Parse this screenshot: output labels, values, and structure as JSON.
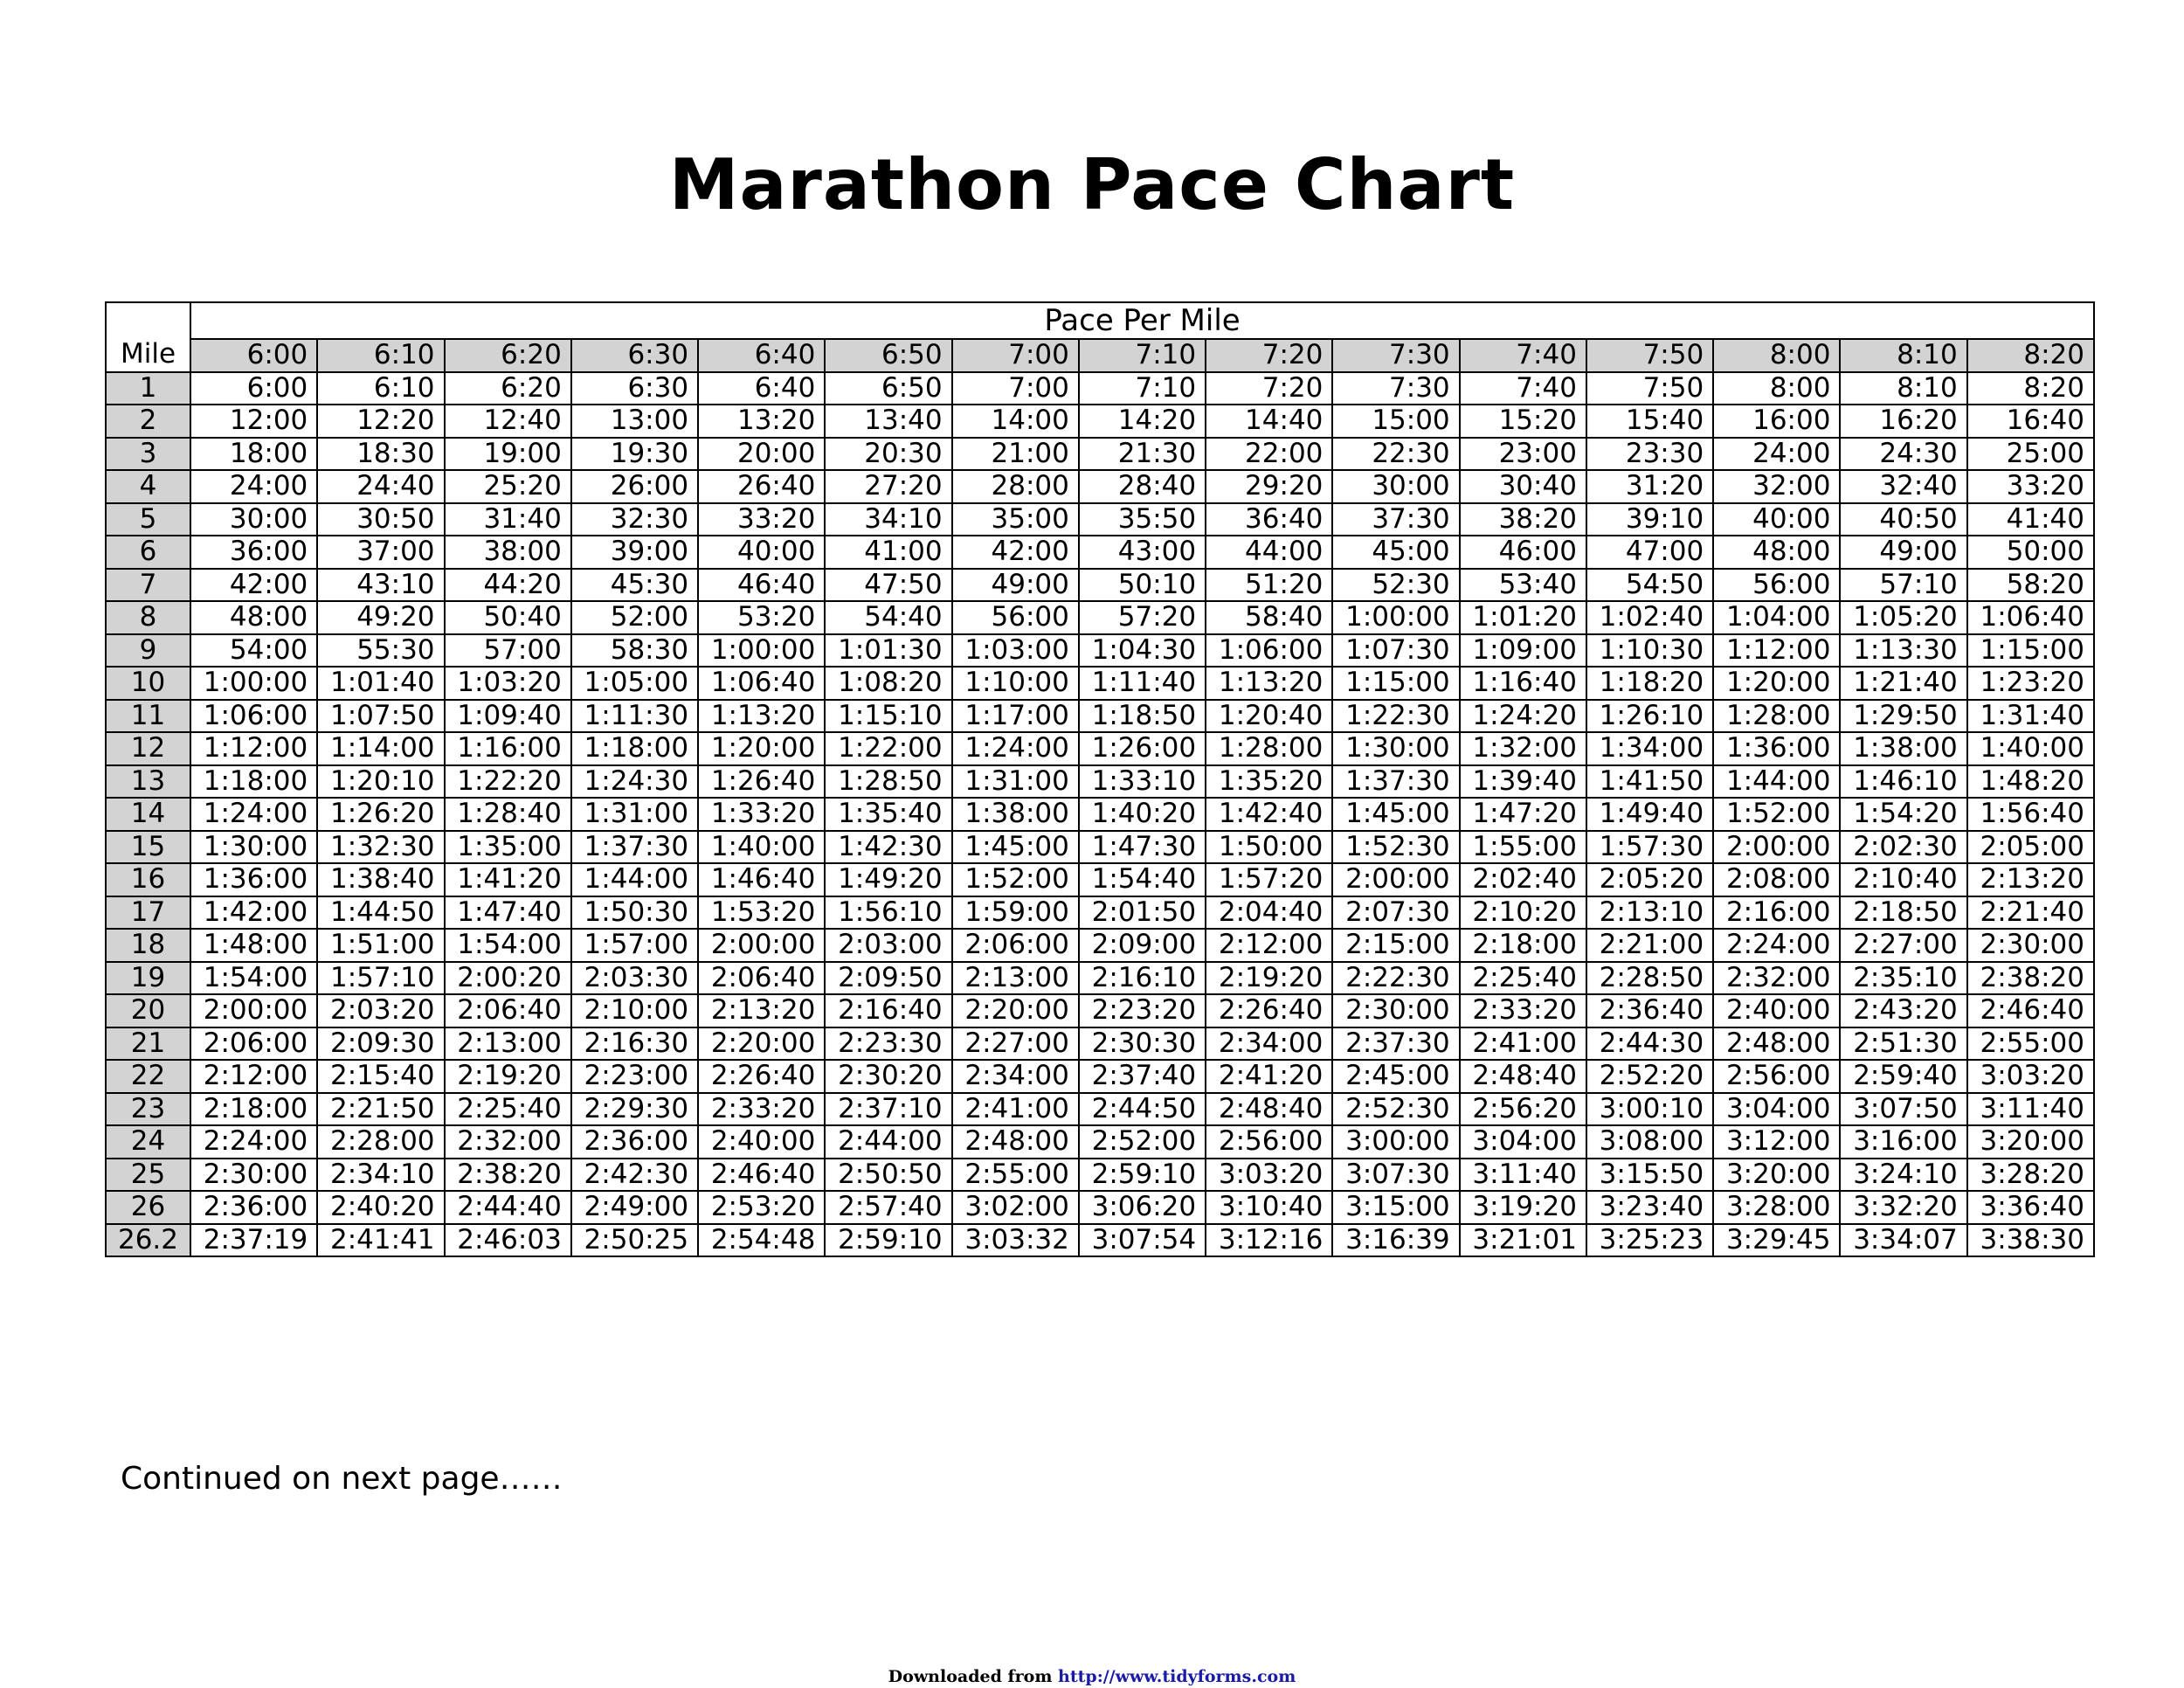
{
  "title": "Marathon Pace Chart",
  "table": {
    "mile_header": "Mile",
    "pace_header": "Pace Per Mile",
    "pace_columns": [
      "6:00",
      "6:10",
      "6:20",
      "6:30",
      "6:40",
      "6:50",
      "7:00",
      "7:10",
      "7:20",
      "7:30",
      "7:40",
      "7:50",
      "8:00",
      "8:10",
      "8:20"
    ],
    "rows": [
      {
        "mile": "1",
        "times": [
          "6:00",
          "6:10",
          "6:20",
          "6:30",
          "6:40",
          "6:50",
          "7:00",
          "7:10",
          "7:20",
          "7:30",
          "7:40",
          "7:50",
          "8:00",
          "8:10",
          "8:20"
        ]
      },
      {
        "mile": "2",
        "times": [
          "12:00",
          "12:20",
          "12:40",
          "13:00",
          "13:20",
          "13:40",
          "14:00",
          "14:20",
          "14:40",
          "15:00",
          "15:20",
          "15:40",
          "16:00",
          "16:20",
          "16:40"
        ]
      },
      {
        "mile": "3",
        "times": [
          "18:00",
          "18:30",
          "19:00",
          "19:30",
          "20:00",
          "20:30",
          "21:00",
          "21:30",
          "22:00",
          "22:30",
          "23:00",
          "23:30",
          "24:00",
          "24:30",
          "25:00"
        ]
      },
      {
        "mile": "4",
        "times": [
          "24:00",
          "24:40",
          "25:20",
          "26:00",
          "26:40",
          "27:20",
          "28:00",
          "28:40",
          "29:20",
          "30:00",
          "30:40",
          "31:20",
          "32:00",
          "32:40",
          "33:20"
        ]
      },
      {
        "mile": "5",
        "times": [
          "30:00",
          "30:50",
          "31:40",
          "32:30",
          "33:20",
          "34:10",
          "35:00",
          "35:50",
          "36:40",
          "37:30",
          "38:20",
          "39:10",
          "40:00",
          "40:50",
          "41:40"
        ]
      },
      {
        "mile": "6",
        "times": [
          "36:00",
          "37:00",
          "38:00",
          "39:00",
          "40:00",
          "41:00",
          "42:00",
          "43:00",
          "44:00",
          "45:00",
          "46:00",
          "47:00",
          "48:00",
          "49:00",
          "50:00"
        ]
      },
      {
        "mile": "7",
        "times": [
          "42:00",
          "43:10",
          "44:20",
          "45:30",
          "46:40",
          "47:50",
          "49:00",
          "50:10",
          "51:20",
          "52:30",
          "53:40",
          "54:50",
          "56:00",
          "57:10",
          "58:20"
        ]
      },
      {
        "mile": "8",
        "times": [
          "48:00",
          "49:20",
          "50:40",
          "52:00",
          "53:20",
          "54:40",
          "56:00",
          "57:20",
          "58:40",
          "1:00:00",
          "1:01:20",
          "1:02:40",
          "1:04:00",
          "1:05:20",
          "1:06:40"
        ]
      },
      {
        "mile": "9",
        "times": [
          "54:00",
          "55:30",
          "57:00",
          "58:30",
          "1:00:00",
          "1:01:30",
          "1:03:00",
          "1:04:30",
          "1:06:00",
          "1:07:30",
          "1:09:00",
          "1:10:30",
          "1:12:00",
          "1:13:30",
          "1:15:00"
        ]
      },
      {
        "mile": "10",
        "times": [
          "1:00:00",
          "1:01:40",
          "1:03:20",
          "1:05:00",
          "1:06:40",
          "1:08:20",
          "1:10:00",
          "1:11:40",
          "1:13:20",
          "1:15:00",
          "1:16:40",
          "1:18:20",
          "1:20:00",
          "1:21:40",
          "1:23:20"
        ]
      },
      {
        "mile": "11",
        "times": [
          "1:06:00",
          "1:07:50",
          "1:09:40",
          "1:11:30",
          "1:13:20",
          "1:15:10",
          "1:17:00",
          "1:18:50",
          "1:20:40",
          "1:22:30",
          "1:24:20",
          "1:26:10",
          "1:28:00",
          "1:29:50",
          "1:31:40"
        ]
      },
      {
        "mile": "12",
        "times": [
          "1:12:00",
          "1:14:00",
          "1:16:00",
          "1:18:00",
          "1:20:00",
          "1:22:00",
          "1:24:00",
          "1:26:00",
          "1:28:00",
          "1:30:00",
          "1:32:00",
          "1:34:00",
          "1:36:00",
          "1:38:00",
          "1:40:00"
        ]
      },
      {
        "mile": "13",
        "times": [
          "1:18:00",
          "1:20:10",
          "1:22:20",
          "1:24:30",
          "1:26:40",
          "1:28:50",
          "1:31:00",
          "1:33:10",
          "1:35:20",
          "1:37:30",
          "1:39:40",
          "1:41:50",
          "1:44:00",
          "1:46:10",
          "1:48:20"
        ]
      },
      {
        "mile": "14",
        "times": [
          "1:24:00",
          "1:26:20",
          "1:28:40",
          "1:31:00",
          "1:33:20",
          "1:35:40",
          "1:38:00",
          "1:40:20",
          "1:42:40",
          "1:45:00",
          "1:47:20",
          "1:49:40",
          "1:52:00",
          "1:54:20",
          "1:56:40"
        ]
      },
      {
        "mile": "15",
        "times": [
          "1:30:00",
          "1:32:30",
          "1:35:00",
          "1:37:30",
          "1:40:00",
          "1:42:30",
          "1:45:00",
          "1:47:30",
          "1:50:00",
          "1:52:30",
          "1:55:00",
          "1:57:30",
          "2:00:00",
          "2:02:30",
          "2:05:00"
        ]
      },
      {
        "mile": "16",
        "times": [
          "1:36:00",
          "1:38:40",
          "1:41:20",
          "1:44:00",
          "1:46:40",
          "1:49:20",
          "1:52:00",
          "1:54:40",
          "1:57:20",
          "2:00:00",
          "2:02:40",
          "2:05:20",
          "2:08:00",
          "2:10:40",
          "2:13:20"
        ]
      },
      {
        "mile": "17",
        "times": [
          "1:42:00",
          "1:44:50",
          "1:47:40",
          "1:50:30",
          "1:53:20",
          "1:56:10",
          "1:59:00",
          "2:01:50",
          "2:04:40",
          "2:07:30",
          "2:10:20",
          "2:13:10",
          "2:16:00",
          "2:18:50",
          "2:21:40"
        ]
      },
      {
        "mile": "18",
        "times": [
          "1:48:00",
          "1:51:00",
          "1:54:00",
          "1:57:00",
          "2:00:00",
          "2:03:00",
          "2:06:00",
          "2:09:00",
          "2:12:00",
          "2:15:00",
          "2:18:00",
          "2:21:00",
          "2:24:00",
          "2:27:00",
          "2:30:00"
        ]
      },
      {
        "mile": "19",
        "times": [
          "1:54:00",
          "1:57:10",
          "2:00:20",
          "2:03:30",
          "2:06:40",
          "2:09:50",
          "2:13:00",
          "2:16:10",
          "2:19:20",
          "2:22:30",
          "2:25:40",
          "2:28:50",
          "2:32:00",
          "2:35:10",
          "2:38:20"
        ]
      },
      {
        "mile": "20",
        "times": [
          "2:00:00",
          "2:03:20",
          "2:06:40",
          "2:10:00",
          "2:13:20",
          "2:16:40",
          "2:20:00",
          "2:23:20",
          "2:26:40",
          "2:30:00",
          "2:33:20",
          "2:36:40",
          "2:40:00",
          "2:43:20",
          "2:46:40"
        ]
      },
      {
        "mile": "21",
        "times": [
          "2:06:00",
          "2:09:30",
          "2:13:00",
          "2:16:30",
          "2:20:00",
          "2:23:30",
          "2:27:00",
          "2:30:30",
          "2:34:00",
          "2:37:30",
          "2:41:00",
          "2:44:30",
          "2:48:00",
          "2:51:30",
          "2:55:00"
        ]
      },
      {
        "mile": "22",
        "times": [
          "2:12:00",
          "2:15:40",
          "2:19:20",
          "2:23:00",
          "2:26:40",
          "2:30:20",
          "2:34:00",
          "2:37:40",
          "2:41:20",
          "2:45:00",
          "2:48:40",
          "2:52:20",
          "2:56:00",
          "2:59:40",
          "3:03:20"
        ]
      },
      {
        "mile": "23",
        "times": [
          "2:18:00",
          "2:21:50",
          "2:25:40",
          "2:29:30",
          "2:33:20",
          "2:37:10",
          "2:41:00",
          "2:44:50",
          "2:48:40",
          "2:52:30",
          "2:56:20",
          "3:00:10",
          "3:04:00",
          "3:07:50",
          "3:11:40"
        ]
      },
      {
        "mile": "24",
        "times": [
          "2:24:00",
          "2:28:00",
          "2:32:00",
          "2:36:00",
          "2:40:00",
          "2:44:00",
          "2:48:00",
          "2:52:00",
          "2:56:00",
          "3:00:00",
          "3:04:00",
          "3:08:00",
          "3:12:00",
          "3:16:00",
          "3:20:00"
        ]
      },
      {
        "mile": "25",
        "times": [
          "2:30:00",
          "2:34:10",
          "2:38:20",
          "2:42:30",
          "2:46:40",
          "2:50:50",
          "2:55:00",
          "2:59:10",
          "3:03:20",
          "3:07:30",
          "3:11:40",
          "3:15:50",
          "3:20:00",
          "3:24:10",
          "3:28:20"
        ]
      },
      {
        "mile": "26",
        "times": [
          "2:36:00",
          "2:40:20",
          "2:44:40",
          "2:49:00",
          "2:53:20",
          "2:57:40",
          "3:02:00",
          "3:06:20",
          "3:10:40",
          "3:15:00",
          "3:19:20",
          "3:23:40",
          "3:28:00",
          "3:32:20",
          "3:36:40"
        ]
      },
      {
        "mile": "26.2",
        "times": [
          "2:37:19",
          "2:41:41",
          "2:46:03",
          "2:50:25",
          "2:54:48",
          "2:59:10",
          "3:03:32",
          "3:07:54",
          "3:12:16",
          "3:16:39",
          "3:21:01",
          "3:25:23",
          "3:29:45",
          "3:34:07",
          "3:38:30"
        ]
      }
    ]
  },
  "continued_text": "Continued on next page……",
  "footer": {
    "prefix": "Downloaded from ",
    "link": "http://www.tidyforms.com"
  },
  "colors": {
    "header_fill": "#d3d3d3",
    "link": "#1a1aa8"
  }
}
